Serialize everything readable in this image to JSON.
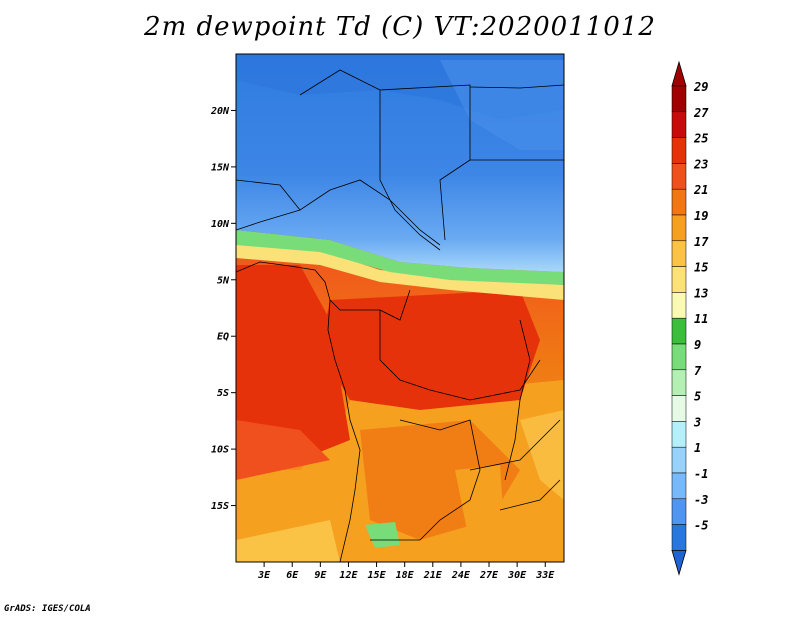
{
  "title": "2m dewpoint Td (C) VT:2020011012",
  "credit": "GrADS: IGES/COLA",
  "map": {
    "lon_range": [
      0,
      35
    ],
    "lat_range": [
      -20,
      25
    ],
    "lat_ticks": [
      {
        "label": "20N",
        "value": 20
      },
      {
        "label": "15N",
        "value": 15
      },
      {
        "label": "10N",
        "value": 10
      },
      {
        "label": "5N",
        "value": 5
      },
      {
        "label": "EQ",
        "value": 0
      },
      {
        "label": "5S",
        "value": -5
      },
      {
        "label": "10S",
        "value": -10
      },
      {
        "label": "15S",
        "value": -15
      }
    ],
    "lon_ticks": [
      {
        "label": "3E",
        "value": 3
      },
      {
        "label": "6E",
        "value": 6
      },
      {
        "label": "9E",
        "value": 9
      },
      {
        "label": "12E",
        "value": 12
      },
      {
        "label": "15E",
        "value": 15
      },
      {
        "label": "18E",
        "value": 18
      },
      {
        "label": "21E",
        "value": 21
      },
      {
        "label": "24E",
        "value": 24
      },
      {
        "label": "27E",
        "value": 27
      },
      {
        "label": "30E",
        "value": 30
      },
      {
        "label": "33E",
        "value": 33
      }
    ]
  },
  "colorbar": {
    "levels": [
      {
        "label": "29",
        "color": "#a00000"
      },
      {
        "label": "27",
        "color": "#c80a0a"
      },
      {
        "label": "25",
        "color": "#e6320a"
      },
      {
        "label": "23",
        "color": "#f0501e"
      },
      {
        "label": "21",
        "color": "#f07814"
      },
      {
        "label": "19",
        "color": "#f5a01e"
      },
      {
        "label": "17",
        "color": "#fac346"
      },
      {
        "label": "15",
        "color": "#fae178"
      },
      {
        "label": "13",
        "color": "#fafab4"
      },
      {
        "label": "11",
        "color": "#3cbe3c"
      },
      {
        "label": "9",
        "color": "#78dc78"
      },
      {
        "label": "7",
        "color": "#b4f0b4"
      },
      {
        "label": "5",
        "color": "#e6fae6"
      },
      {
        "label": "3",
        "color": "#b4f0fa"
      },
      {
        "label": "1",
        "color": "#96d2fa"
      },
      {
        "label": "-1",
        "color": "#78b9fa"
      },
      {
        "label": "-3",
        "color": "#5096f0"
      },
      {
        "label": "-5",
        "color": "#2878dc"
      }
    ],
    "top_cap_color": "#a00000",
    "bottom_cap_color": "#1e64d2"
  }
}
